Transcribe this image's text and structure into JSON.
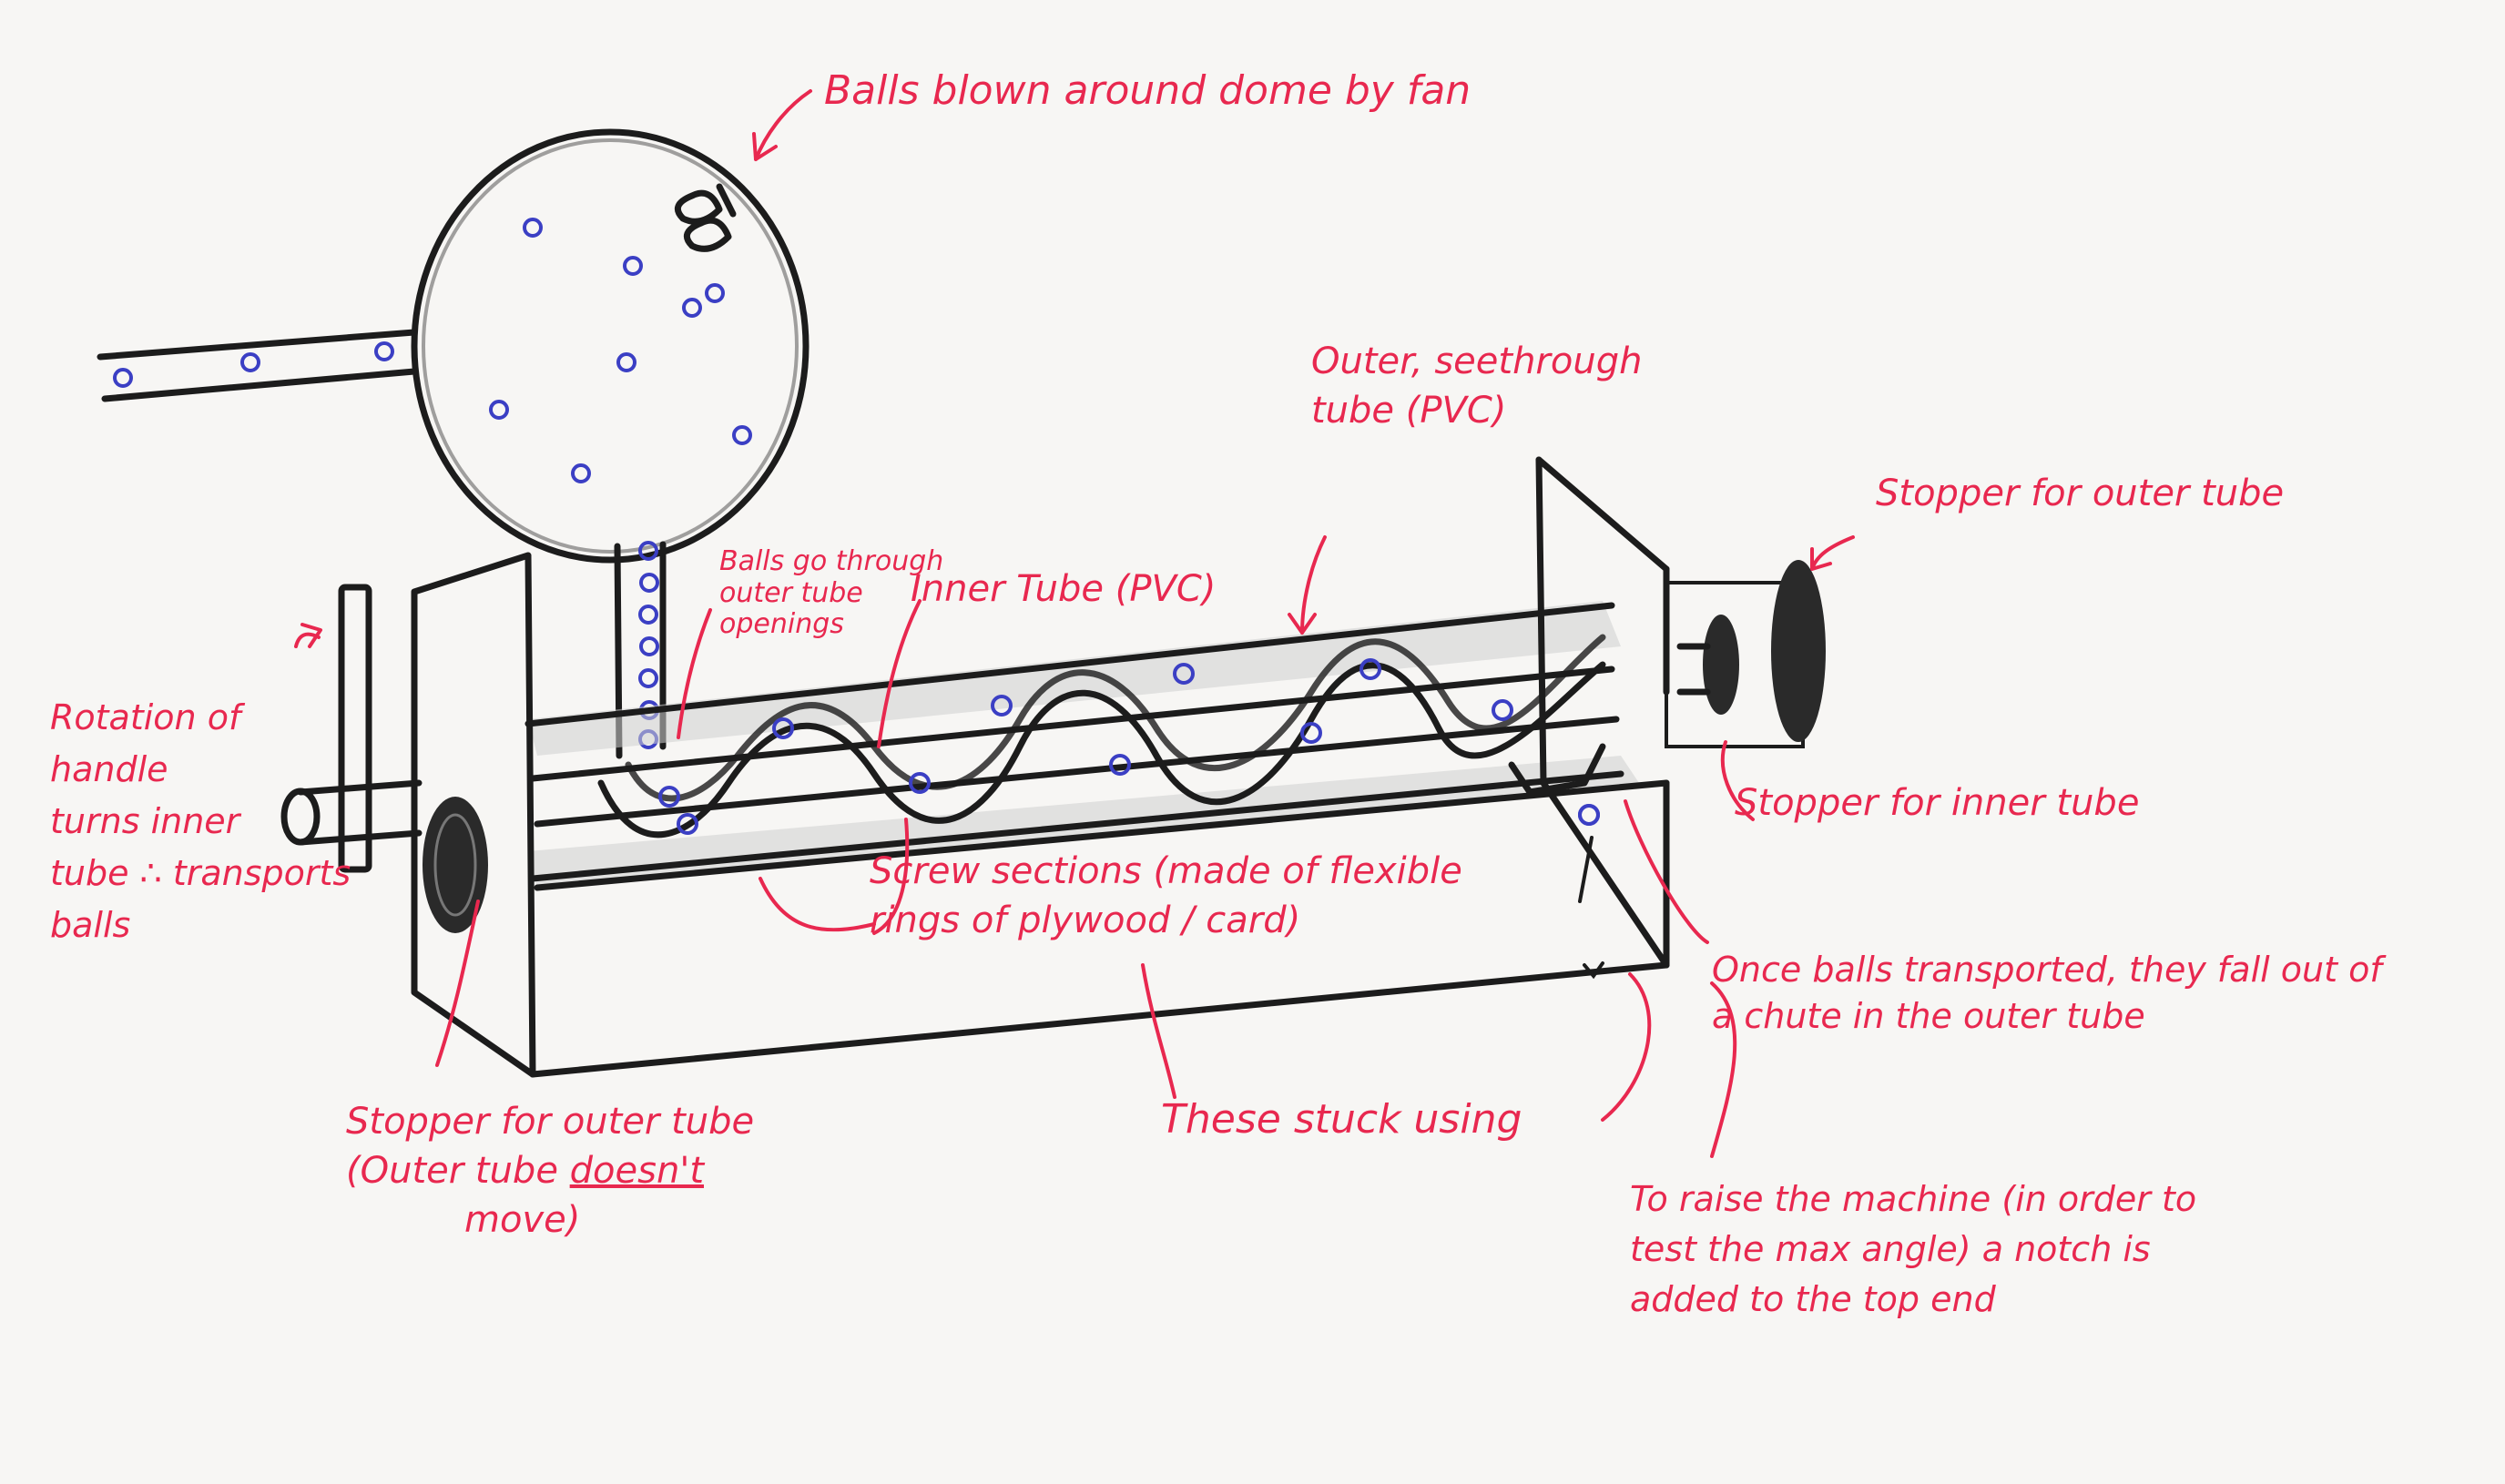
{
  "labels": {
    "fan_dome": "Balls blown around dome by fan",
    "outer_tube": "Outer, seethrough\ntube (PVC)",
    "stopper_outer_right": "Stopper for outer tube",
    "balls_go_through": "Balls go through\nouter tube\nopenings",
    "inner_tube": "Inner Tube (PVC)",
    "rotation_handle": "Rotation of\nhandle\nturns inner\ntube ∴ transports\nballs",
    "stopper_inner": "Stopper for inner tube",
    "screw_sections": "Screw sections (made of flexible\nrings of plywood / card)",
    "balls_fall_out": "Once balls transported, they fall out of\na chute in the outer tube",
    "stopper_outer_left_line1": "Stopper for outer tube",
    "stopper_outer_left_line2a": "(Outer tube ",
    "stopper_outer_left_line2b": "doesn't",
    "stopper_outer_left_line3": "move)",
    "stuck_using": "These stuck using",
    "raise_machine": "To raise the machine (in order to\ntest the max angle) a notch is\nadded to the top end"
  },
  "colors": {
    "annotation": "#e8284f",
    "ink": "#1c1c1c",
    "balls": "#3b3fc4",
    "paper": "#f7f6f4"
  }
}
